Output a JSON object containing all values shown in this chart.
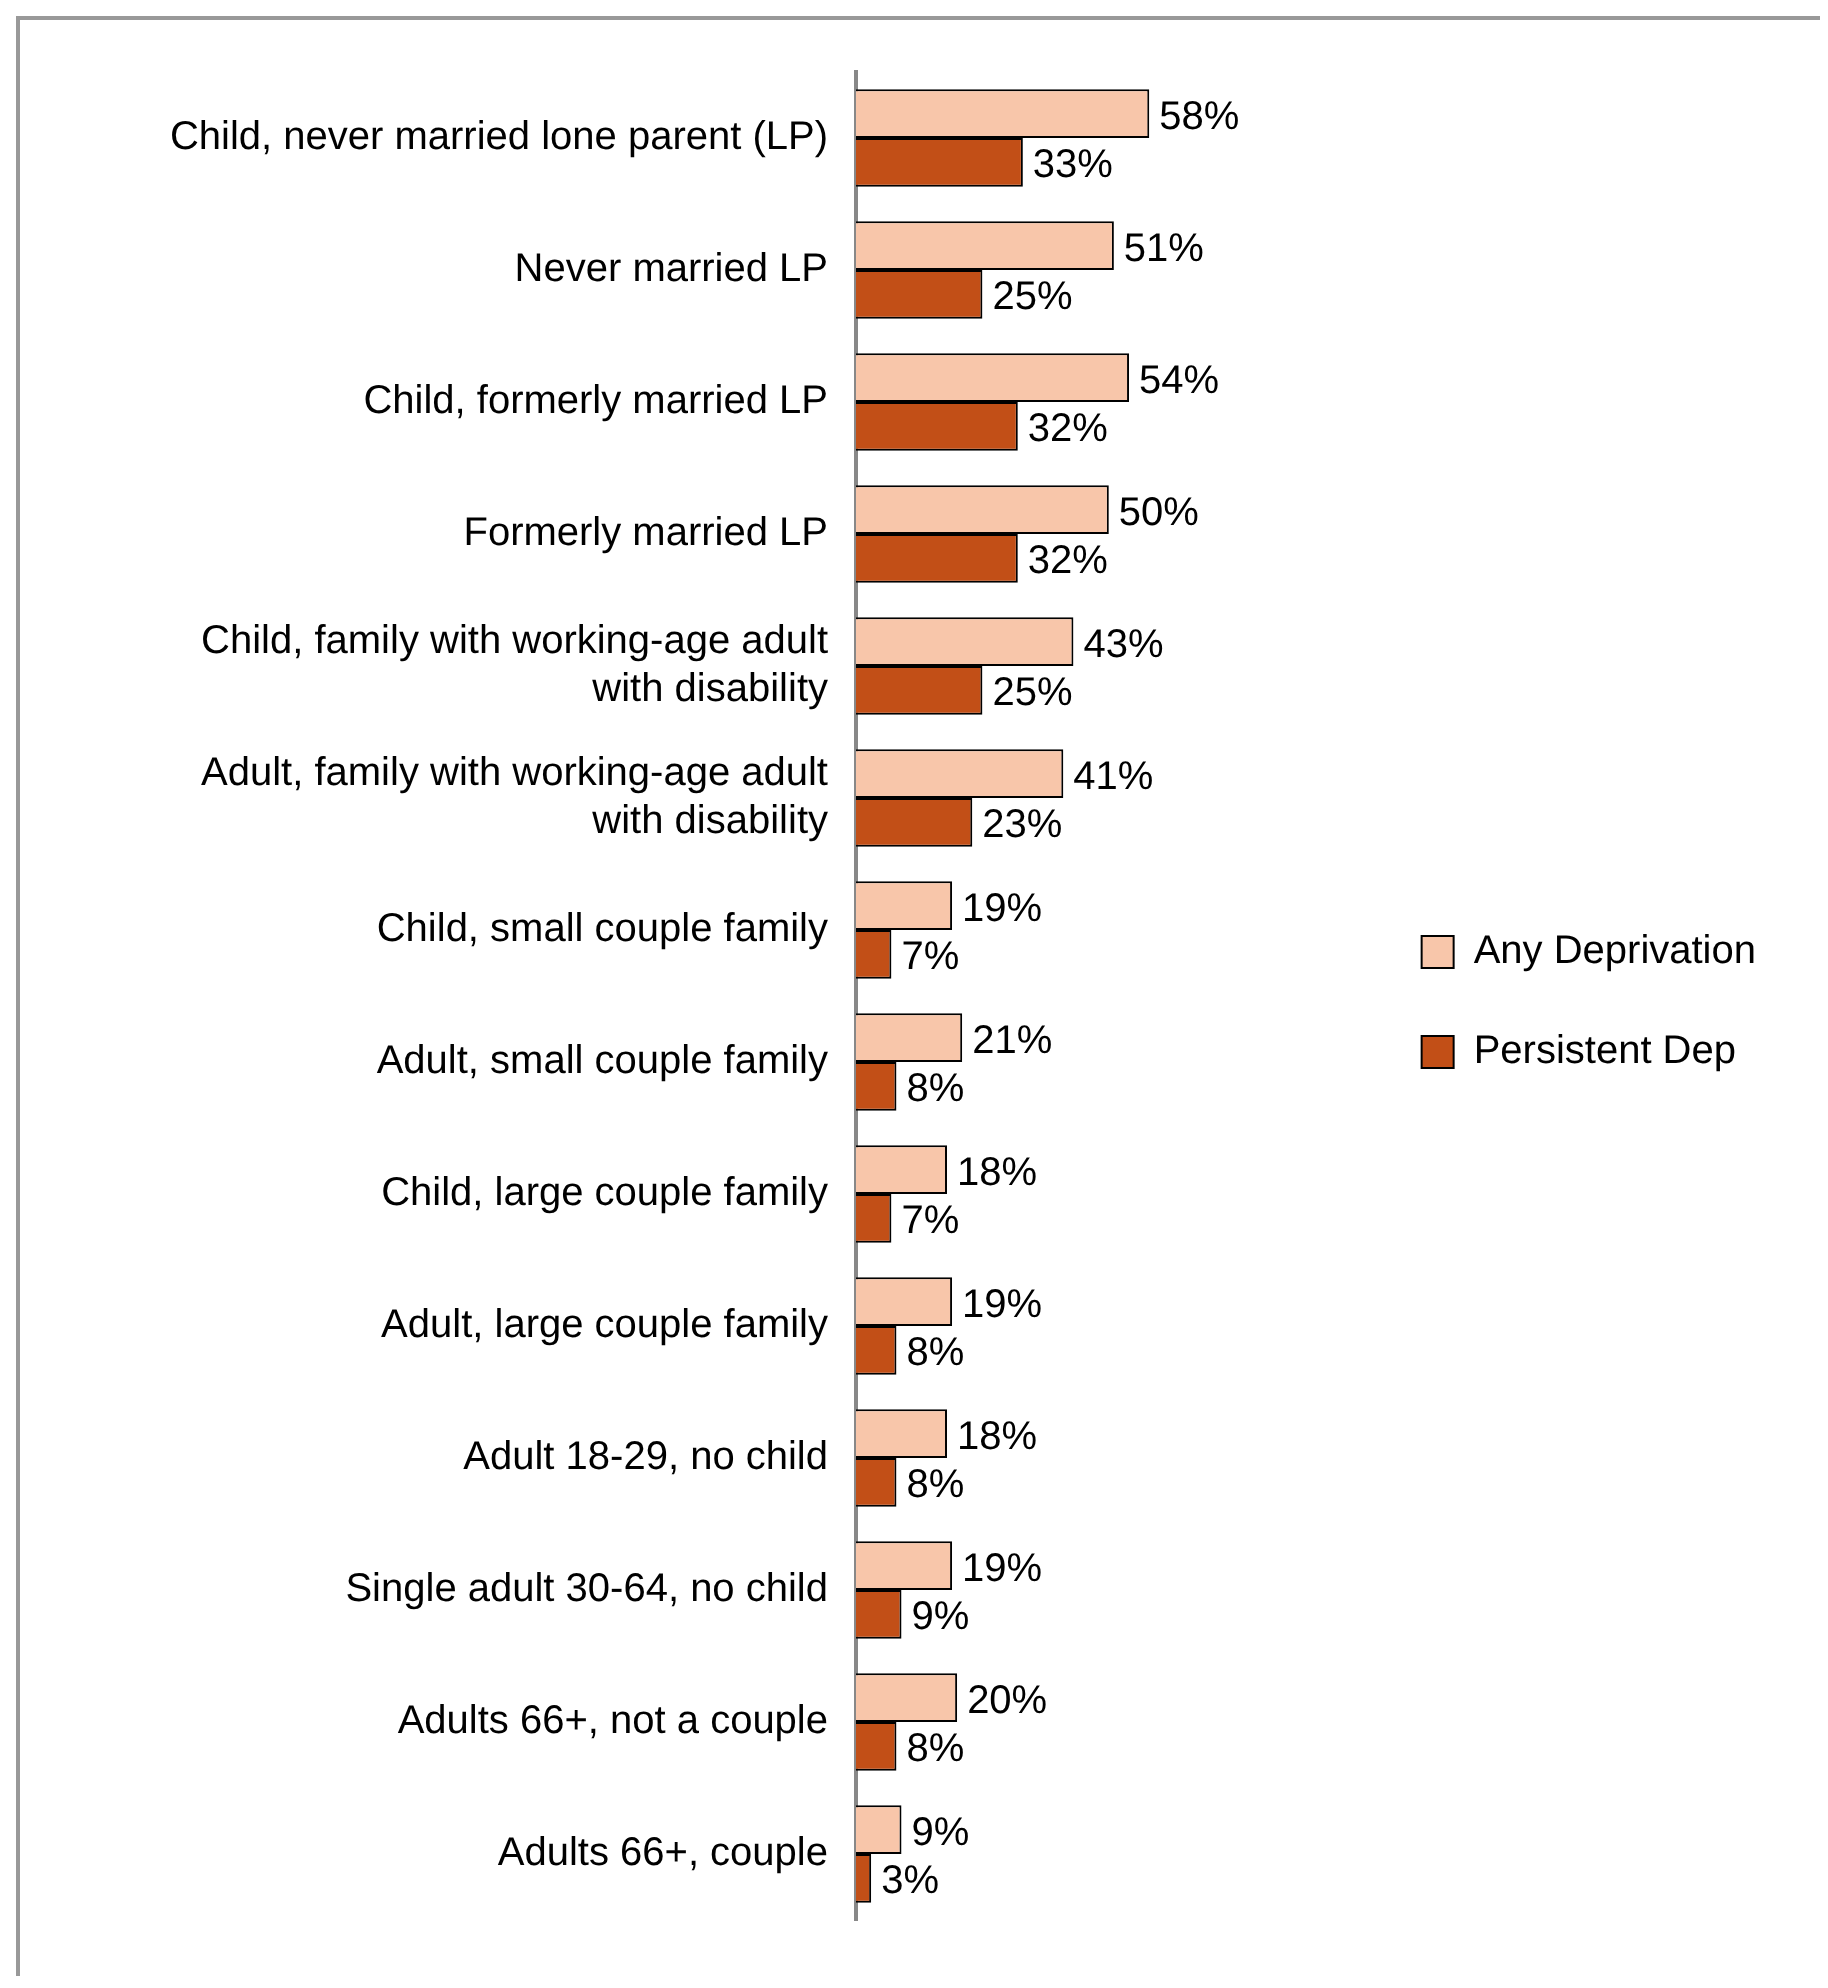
{
  "chart_data": {
    "type": "bar",
    "orientation": "horizontal",
    "legend": "right",
    "categories": [
      "Child, never married lone parent (LP)",
      "Never married LP",
      "Child, formerly married LP",
      "Formerly married LP",
      "Child, family with working-age adult with disability",
      "Adult, family with working-age adult with disability",
      "Child, small couple family",
      "Adult, small couple family",
      "Child, large couple family",
      "Adult, large couple family",
      "Adult 18-29, no child",
      "Single adult 30-64, no child",
      "Adults 66+, not a couple",
      "Adults 66+, couple"
    ],
    "series": [
      {
        "name": "Any Deprivation",
        "color": "#f8c6aa",
        "values": [
          58,
          51,
          54,
          50,
          43,
          41,
          19,
          21,
          18,
          19,
          18,
          19,
          20,
          9
        ],
        "value_labels": [
          "58%",
          "51%",
          "54%",
          "50%",
          "43%",
          "41%",
          "19%",
          "21%",
          "18%",
          "19%",
          "18%",
          "19%",
          "20%",
          "9%"
        ]
      },
      {
        "name": "Persistent Dep",
        "color": "#c24f17",
        "values": [
          33,
          25,
          32,
          32,
          25,
          23,
          7,
          8,
          7,
          8,
          8,
          9,
          8,
          3
        ],
        "value_labels": [
          "33%",
          "25%",
          "32%",
          "32%",
          "25%",
          "23%",
          "7%",
          "8%",
          "7%",
          "8%",
          "8%",
          "9%",
          "8%",
          "3%"
        ]
      }
    ]
  }
}
